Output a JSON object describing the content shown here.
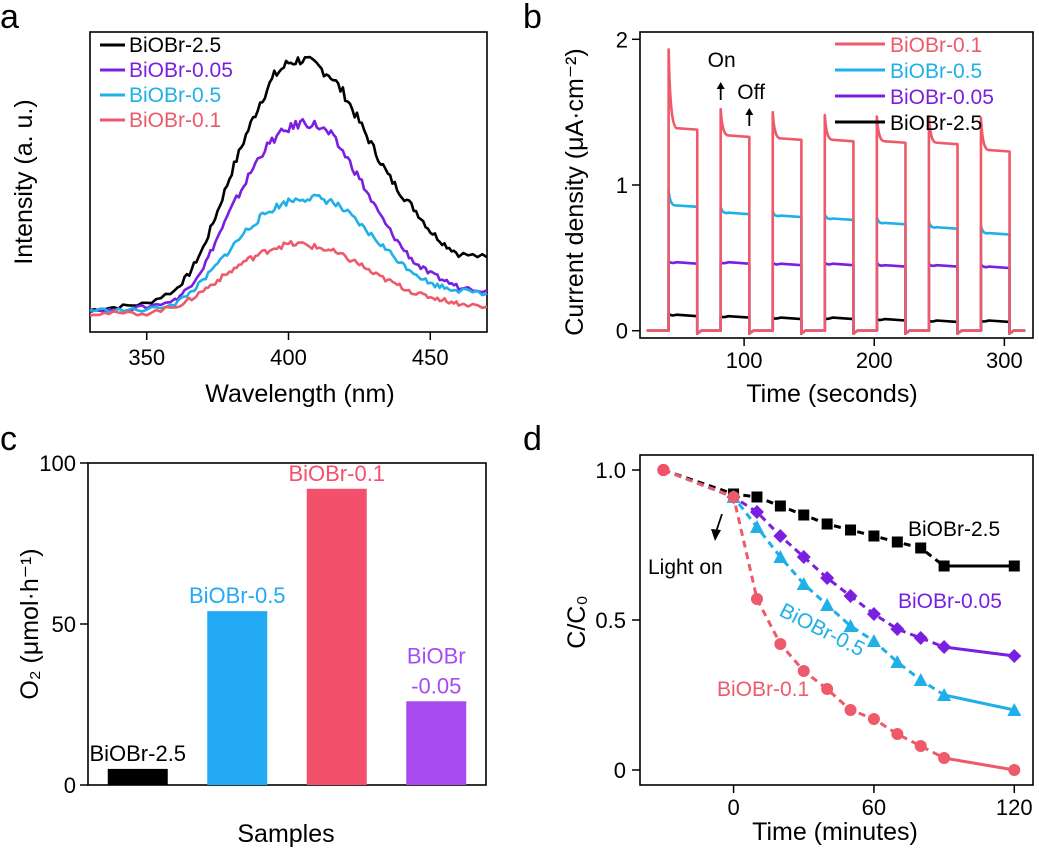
{
  "colors": {
    "black": "#000000",
    "purple": "#7a1fe0",
    "blue": "#1fb0e8",
    "red": "#ee5a6a",
    "pink": "#f2506b",
    "lavender": "#a83ff0",
    "bar_black": "#000000",
    "bar_blue": "#22aaf5",
    "bar_red": "#f2506b",
    "bar_purple": "#a84cf2"
  },
  "chart_data": [
    {
      "panel": "a",
      "type": "line",
      "xlabel": "Wavelength (nm)",
      "ylabel": "Intensity (a. u.)",
      "xlim": [
        330,
        470
      ],
      "xticks": [
        350,
        400,
        450
      ],
      "legend": [
        "BiOBr-2.5",
        "BiOBr-0.05",
        "BiOBr-0.5",
        "BiOBr-0.1"
      ],
      "legend_position": "top-left",
      "x": [
        330,
        340,
        350,
        360,
        365,
        370,
        375,
        380,
        385,
        390,
        395,
        400,
        405,
        410,
        415,
        420,
        425,
        430,
        435,
        440,
        445,
        450,
        455,
        460,
        470
      ],
      "series": [
        {
          "name": "BiOBr-2.5",
          "color": "black",
          "values": [
            0.03,
            0.04,
            0.05,
            0.09,
            0.14,
            0.22,
            0.33,
            0.45,
            0.56,
            0.66,
            0.74,
            0.78,
            0.79,
            0.77,
            0.74,
            0.68,
            0.6,
            0.52,
            0.44,
            0.38,
            0.33,
            0.27,
            0.23,
            0.2,
            0.19
          ]
        },
        {
          "name": "BiOBr-0.05",
          "color": "purple",
          "values": [
            0.03,
            0.03,
            0.04,
            0.06,
            0.1,
            0.16,
            0.25,
            0.34,
            0.42,
            0.5,
            0.55,
            0.58,
            0.6,
            0.59,
            0.56,
            0.5,
            0.43,
            0.35,
            0.28,
            0.22,
            0.17,
            0.14,
            0.12,
            0.1,
            0.09
          ]
        },
        {
          "name": "BiOBr-0.5",
          "color": "blue",
          "values": [
            0.03,
            0.03,
            0.03,
            0.05,
            0.08,
            0.12,
            0.17,
            0.22,
            0.27,
            0.31,
            0.34,
            0.36,
            0.37,
            0.37,
            0.36,
            0.33,
            0.29,
            0.25,
            0.21,
            0.17,
            0.14,
            0.11,
            0.1,
            0.09,
            0.08
          ]
        },
        {
          "name": "BiOBr-0.1",
          "color": "red",
          "values": [
            0.02,
            0.02,
            0.02,
            0.04,
            0.06,
            0.09,
            0.12,
            0.15,
            0.18,
            0.2,
            0.22,
            0.23,
            0.23,
            0.22,
            0.21,
            0.19,
            0.17,
            0.14,
            0.12,
            0.1,
            0.08,
            0.07,
            0.06,
            0.05,
            0.04
          ]
        }
      ]
    },
    {
      "panel": "b",
      "type": "line",
      "xlabel": "Time (seconds)",
      "ylabel": "Current density (μA·cm⁻²)",
      "xlim": [
        20,
        322
      ],
      "ylim": [
        -0.05,
        2.05
      ],
      "xticks": [
        100,
        200,
        300
      ],
      "yticks": [
        0,
        1,
        2
      ],
      "legend": [
        "BiOBr-0.1",
        "BiOBr-0.5",
        "BiOBr-0.05",
        "BiOBr-2.5"
      ],
      "legend_position": "top-right",
      "on_times": [
        42,
        82,
        122,
        162,
        202,
        242,
        282
      ],
      "on_duration": 22,
      "annotations": [
        {
          "text": "On",
          "x": 82
        },
        {
          "text": "Off",
          "x": 104
        }
      ],
      "series": [
        {
          "name": "BiOBr-0.1",
          "color": "red",
          "spike": [
            1.93,
            1.52,
            1.5,
            1.48,
            1.47,
            1.47,
            1.46
          ],
          "plateau": [
            1.38,
            1.33,
            1.31,
            1.3,
            1.29,
            1.28,
            1.23
          ]
        },
        {
          "name": "BiOBr-0.5",
          "color": "blue",
          "spike": [
            0.96,
            0.85,
            0.82,
            0.8,
            0.78,
            0.75,
            0.72
          ],
          "plateau": [
            0.85,
            0.8,
            0.78,
            0.76,
            0.73,
            0.7,
            0.66
          ]
        },
        {
          "name": "BiOBr-0.05",
          "color": "purple",
          "spike": [
            0.48,
            0.47,
            0.47,
            0.47,
            0.47,
            0.46,
            0.46
          ],
          "plateau": [
            0.46,
            0.46,
            0.45,
            0.45,
            0.44,
            0.44,
            0.43
          ]
        },
        {
          "name": "BiOBr-2.5",
          "color": "black",
          "spike": [
            0.12,
            0.1,
            0.09,
            0.08,
            0.08,
            0.07,
            0.07
          ],
          "plateau": [
            0.1,
            0.09,
            0.08,
            0.08,
            0.07,
            0.06,
            0.06
          ]
        }
      ],
      "dark_baseline": 0.0
    },
    {
      "panel": "c",
      "type": "bar",
      "xlabel": "Samples",
      "ylabel": "O₂ (μmol·h⁻¹)",
      "ylim": [
        0,
        100
      ],
      "yticks": [
        0,
        50,
        100
      ],
      "categories": [
        "BiOBr-2.5",
        "BiOBr-0.5",
        "BiOBr-0.1",
        "BiOBr-0.05"
      ],
      "labels": [
        [
          "BiOBr-2.5"
        ],
        [
          "BiOBr-0.5"
        ],
        [
          "BiOBr-0.1"
        ],
        [
          "BiOBr",
          "-0.05"
        ]
      ],
      "bar_colors": [
        "bar_black",
        "bar_blue",
        "bar_red",
        "bar_purple"
      ],
      "values": [
        5,
        54,
        92,
        26
      ]
    },
    {
      "panel": "d",
      "type": "line",
      "xlabel": "Time (minutes)",
      "ylabel": "C/C₀",
      "xlim": [
        -40,
        128
      ],
      "ylim": [
        -0.05,
        1.05
      ],
      "xticks": [
        0,
        60,
        120
      ],
      "yticks": [
        0,
        0.5,
        1.0
      ],
      "ytick_labels": [
        "0",
        "0.5",
        "1.0"
      ],
      "x": [
        -30,
        0,
        10,
        20,
        30,
        40,
        50,
        60,
        70,
        80,
        90,
        120
      ],
      "annotation": "Light on",
      "series": [
        {
          "name": "BiOBr-2.5",
          "color": "black",
          "marker": "square",
          "line": "dash",
          "values": [
            1.0,
            0.92,
            0.91,
            0.88,
            0.85,
            0.82,
            0.8,
            0.78,
            0.76,
            0.74,
            0.68,
            0.68
          ]
        },
        {
          "name": "BiOBr-0.05",
          "color": "purple",
          "marker": "diamond",
          "line": "dash",
          "values": [
            1.0,
            0.91,
            0.86,
            0.78,
            0.71,
            0.64,
            0.58,
            0.52,
            0.47,
            0.44,
            0.41,
            0.38
          ]
        },
        {
          "name": "BiOBr-0.5",
          "color": "blue",
          "marker": "triangle",
          "line": "dash",
          "values": [
            1.0,
            0.91,
            0.81,
            0.71,
            0.62,
            0.55,
            0.48,
            0.43,
            0.36,
            0.3,
            0.25,
            0.2
          ]
        },
        {
          "name": "BiOBr-0.1",
          "color": "red",
          "marker": "circle",
          "line": "dash",
          "values": [
            1.0,
            0.91,
            0.57,
            0.42,
            0.33,
            0.27,
            0.2,
            0.17,
            0.12,
            0.08,
            0.04,
            0.0
          ]
        }
      ],
      "series_label_positions": [
        "right",
        "right",
        "diagonal",
        "lower"
      ]
    }
  ],
  "panels": {
    "a": "a",
    "b": "b",
    "c": "c",
    "d": "d"
  }
}
